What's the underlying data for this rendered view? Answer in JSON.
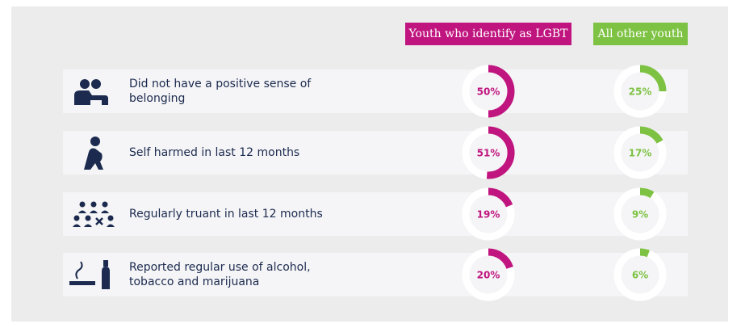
{
  "chart_data": {
    "type": "donut",
    "categories": [
      "Did not have a positive sense of belonging",
      "Self harmed in last 12 months",
      "Regularly truant in last 12 months",
      "Reported regular use of alcohol, tobacco and marijuana"
    ],
    "series": [
      {
        "name": "Youth who identify as LGBT",
        "color": "#c0157f",
        "values": [
          50,
          51,
          19,
          20
        ],
        "value_labels": [
          "50%",
          "51%",
          "19%",
          "20%"
        ]
      },
      {
        "name": "All other youth",
        "color": "#7dc242",
        "values": [
          25,
          17,
          9,
          6
        ],
        "value_labels": [
          "25%",
          "17%",
          "9%",
          "6%"
        ]
      }
    ]
  }
}
